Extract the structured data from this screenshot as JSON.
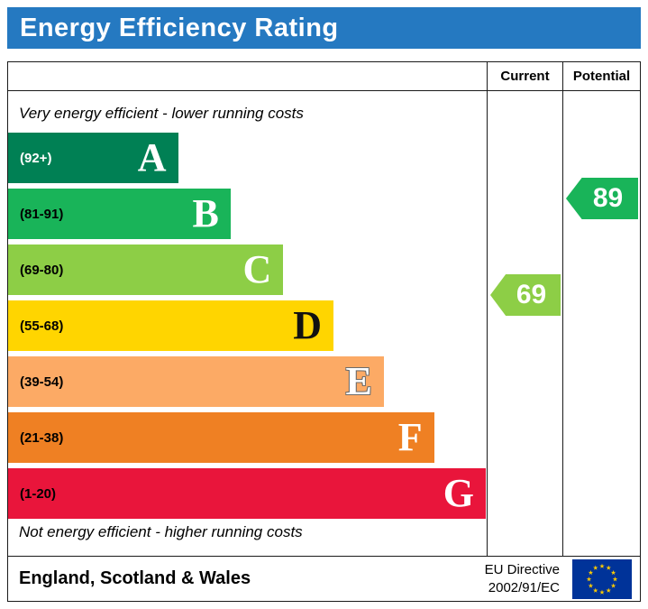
{
  "title": "Energy Efficiency Rating",
  "header": {
    "current_label": "Current",
    "potential_label": "Potential"
  },
  "notes": {
    "top": "Very energy efficient - lower running costs",
    "bottom": "Not energy efficient - higher running costs"
  },
  "bands": [
    {
      "letter": "A",
      "range": "(92+)",
      "min": 92,
      "max": 100,
      "color": "#008054",
      "width_pct": 35.5,
      "range_color": "#ffffff",
      "letter_color": "#ffffff",
      "letter_outline": false
    },
    {
      "letter": "B",
      "range": "(81-91)",
      "min": 81,
      "max": 91,
      "color": "#19b459",
      "width_pct": 46.5,
      "range_color": "#000000",
      "letter_color": "#ffffff",
      "letter_outline": false
    },
    {
      "letter": "C",
      "range": "(69-80)",
      "min": 69,
      "max": 80,
      "color": "#8dce46",
      "width_pct": 57.5,
      "range_color": "#000000",
      "letter_color": "#ffffff",
      "letter_outline": false
    },
    {
      "letter": "D",
      "range": "(55-68)",
      "min": 55,
      "max": 68,
      "color": "#ffd500",
      "width_pct": 68,
      "range_color": "#000000",
      "letter_color": "#111111",
      "letter_outline": false
    },
    {
      "letter": "E",
      "range": "(39-54)",
      "min": 39,
      "max": 54,
      "color": "#fcaa65",
      "width_pct": 78.5,
      "range_color": "#000000",
      "letter_color": "#ffffff",
      "letter_outline": true
    },
    {
      "letter": "F",
      "range": "(21-38)",
      "min": 21,
      "max": 38,
      "color": "#ef8023",
      "width_pct": 89,
      "range_color": "#000000",
      "letter_color": "#ffffff",
      "letter_outline": false
    },
    {
      "letter": "G",
      "range": "(1-20)",
      "min": 1,
      "max": 20,
      "color": "#e9153b",
      "width_pct": 99.8,
      "range_color": "#000000",
      "letter_color": "#ffffff",
      "letter_outline": false
    }
  ],
  "ratings": {
    "current": {
      "value": 69,
      "color": "#8dce46"
    },
    "potential": {
      "value": 89,
      "color": "#19b459"
    }
  },
  "footer": {
    "region": "England, Scotland & Wales",
    "directive_line1": "EU Directive",
    "directive_line2": "2002/91/EC"
  },
  "colors": {
    "title_bg": "#2579c1",
    "border": "#1a1a1a",
    "flag_blue": "#003399",
    "flag_star": "#ffcc00"
  },
  "chart_data": {
    "type": "bar",
    "title": "Energy Efficiency Rating",
    "categories": [
      "A",
      "B",
      "C",
      "D",
      "E",
      "F",
      "G"
    ],
    "band_ranges": [
      "92+",
      "81-91",
      "69-80",
      "55-68",
      "39-54",
      "21-38",
      "1-20"
    ],
    "band_colors": [
      "#008054",
      "#19b459",
      "#8dce46",
      "#ffd500",
      "#fcaa65",
      "#ef8023",
      "#e9153b"
    ],
    "bar_lengths_pct": [
      35.5,
      46.5,
      57.5,
      68,
      78.5,
      89,
      99.8
    ],
    "series": [
      {
        "name": "Current",
        "value": 69,
        "band": "C"
      },
      {
        "name": "Potential",
        "value": 89,
        "band": "B"
      }
    ],
    "annotations": [
      "Very energy efficient - lower running costs",
      "Not energy efficient - higher running costs"
    ],
    "legend_position": "none",
    "footer": "England, Scotland & Wales — EU Directive 2002/91/EC"
  }
}
